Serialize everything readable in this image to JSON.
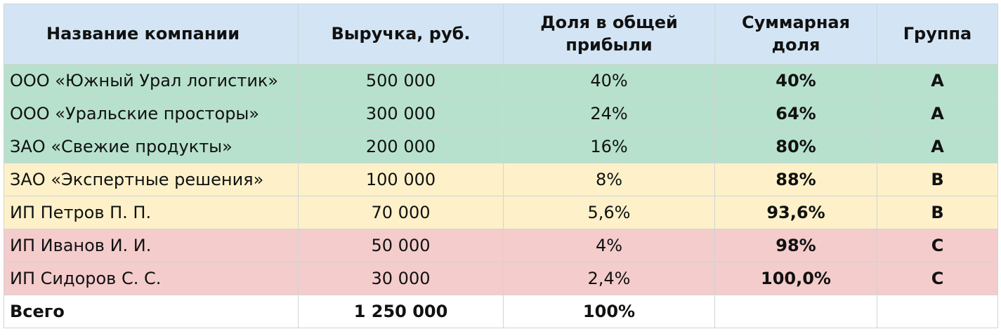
{
  "table": {
    "header": [
      "Название компании",
      "Выручка, руб.",
      "Доля в общей прибыли",
      "Суммарная доля",
      "Группа"
    ],
    "rows": [
      [
        "ООО «Южный Урал логистик»",
        "500 000",
        "40%",
        "40%",
        "A"
      ],
      [
        "ООО «Уральские просторы»",
        "300 000",
        "24%",
        "64%",
        "A"
      ],
      [
        "ЗАО «Свежие продукты»",
        "200 000",
        "16%",
        "80%",
        "A"
      ],
      [
        "ЗАО «Экспертные решения»",
        "100 000",
        "8%",
        "88%",
        "B"
      ],
      [
        "ИП Петров П. П.",
        "70 000",
        "5,6%",
        "93,6%",
        "B"
      ],
      [
        "ИП Иванов И. И.",
        "50 000",
        "4%",
        "98%",
        "C"
      ],
      [
        "ИП Сидоров С. С.",
        "30 000",
        "2,4%",
        "100,0%",
        "C"
      ]
    ],
    "total": [
      "Всего",
      "1 250 000",
      "100%"
    ]
  }
}
